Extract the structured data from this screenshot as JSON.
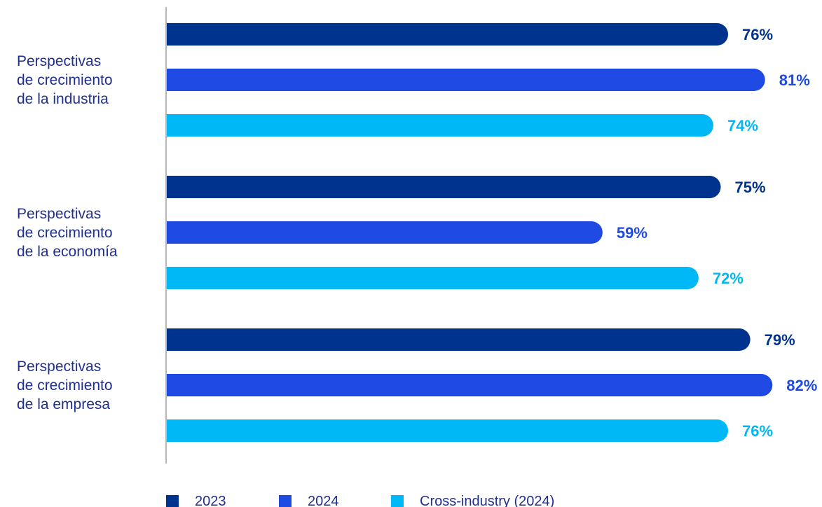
{
  "chart_data": {
    "type": "bar",
    "orientation": "horizontal",
    "categories": [
      [
        "Perspectivas",
        "de crecimiento",
        "de la industria"
      ],
      [
        "Perspectivas",
        "de crecimiento",
        "de la economía"
      ],
      [
        "Perspectivas",
        "de crecimiento",
        "de la empresa"
      ]
    ],
    "series": [
      {
        "name": "2023",
        "values": [
          76,
          75,
          79
        ],
        "labels": [
          "76%",
          "75%",
          "79%"
        ],
        "color": "#00338d"
      },
      {
        "name": "2024",
        "values": [
          81,
          59,
          82
        ],
        "labels": [
          "81%",
          "59%",
          "82%"
        ],
        "color": "#1e49e2"
      },
      {
        "name": "Cross-industry (2024)",
        "values": [
          74,
          72,
          76
        ],
        "labels": [
          "74%",
          "72%",
          "76%"
        ],
        "color": "#00b8f5"
      }
    ],
    "xlim": [
      0,
      100
    ],
    "unit": "%",
    "grid": false,
    "legend": "bottom-left"
  }
}
